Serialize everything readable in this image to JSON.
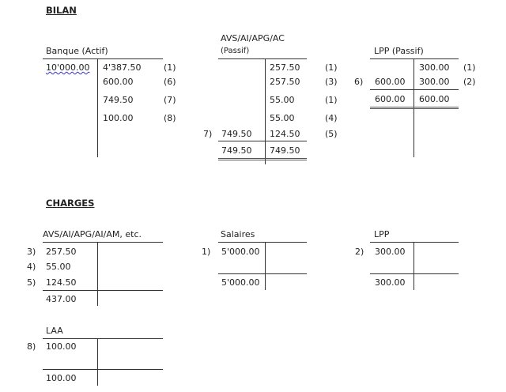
{
  "bilan": {
    "heading": "BILAN",
    "banque": {
      "title": "Banque (Actif)",
      "debit": [
        "10'000.00"
      ],
      "credit": [
        "4'387.50",
        "600.00",
        "749.50",
        "100.00"
      ],
      "refs": [
        "(1)",
        "(6)",
        "(7)",
        "(8)"
      ]
    },
    "avs": {
      "title_line1": "AVS/AI/APG/AC",
      "title_line2": "(Passif)",
      "credit": [
        "257.50",
        "257.50",
        "55.00",
        "55.00",
        "124.50"
      ],
      "refs": [
        "(1)",
        "(3)",
        "(1)",
        "(4)",
        "(5)"
      ],
      "debit_ref": "7)",
      "debit": "749.50",
      "total_debit": "749.50",
      "total_credit": "749.50"
    },
    "lpp": {
      "title": "LPP (Passif)",
      "credit": [
        "300.00",
        "300.00"
      ],
      "refs": [
        "(1)",
        "(2)"
      ],
      "debit_ref": "6)",
      "debit": "600.00",
      "total_debit": "600.00",
      "total_credit": "600.00"
    }
  },
  "charges": {
    "heading": "CHARGES",
    "avs": {
      "title": "AVS/AI/APG/AI/AM, etc.",
      "refs": [
        "3)",
        "4)",
        "5)"
      ],
      "debit": [
        "257.50",
        "55.00",
        "124.50"
      ],
      "total": "437.00"
    },
    "salaires": {
      "title": "Salaires",
      "ref": "1)",
      "debit": "5'000.00",
      "total": "5'000.00"
    },
    "lpp": {
      "title": "LPP",
      "ref": "2)",
      "debit": "300.00",
      "total": "300.00"
    },
    "laa": {
      "title": "LAA",
      "ref": "8)",
      "debit": "100.00",
      "total": "100.00"
    }
  }
}
